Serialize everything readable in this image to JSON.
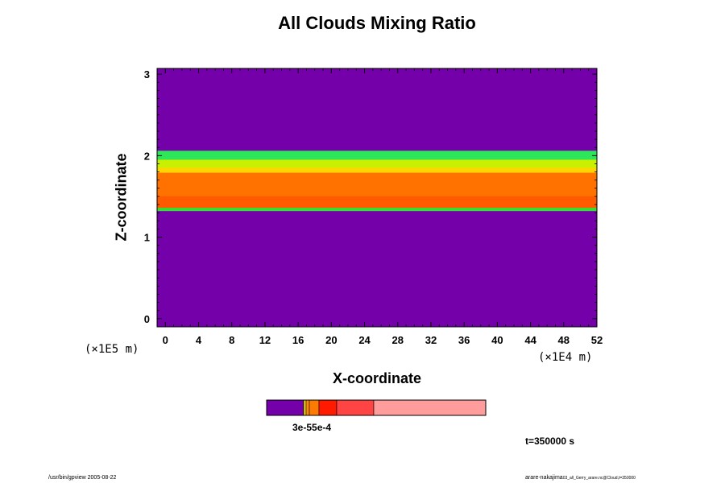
{
  "chart_data": {
    "type": "heatmap",
    "title": "All Clouds Mixing Ratio",
    "xlabel": "X-coordinate",
    "ylabel": "Z-coordinate",
    "x_unit": "(×1E4 m)",
    "y_unit": "(×1E5 m)",
    "xlim": [
      -1,
      52
    ],
    "ylim": [
      -0.1,
      3.07
    ],
    "x_ticks": [
      0,
      4,
      8,
      12,
      16,
      20,
      24,
      28,
      32,
      36,
      40,
      44,
      48,
      52
    ],
    "y_ticks": [
      0,
      1,
      2,
      3
    ],
    "background_color": "#7300a8",
    "layers": [
      {
        "z_bottom": 1.93,
        "z_top": 2.06,
        "color": "#2ee65a"
      },
      {
        "z_bottom": 1.83,
        "z_top": 1.95,
        "color": "#c8f000"
      },
      {
        "z_bottom": 1.78,
        "z_top": 1.85,
        "color": "#ffd400"
      },
      {
        "z_bottom": 1.5,
        "z_top": 1.79,
        "color": "#ff7200"
      },
      {
        "z_bottom": 1.34,
        "z_top": 1.5,
        "color": "#ff5a00"
      },
      {
        "z_bottom": 1.32,
        "z_top": 1.36,
        "color": "#32e032"
      }
    ],
    "colorbar": {
      "colors": [
        "#7300a8",
        "#f0e000",
        "#ff8c00",
        "#ff7a00",
        "#ff1a00",
        "#ff4444",
        "#ff9c9c"
      ],
      "label": "3e-55e-4"
    },
    "time_label": "t=350000 s"
  },
  "footer": {
    "left": "/usr/bin/gpview 2005-08-22",
    "right_main": "arare-nakajima",
    "right_sub": "03_all_Gerry_arare.nc@Cloud,t=350000"
  }
}
